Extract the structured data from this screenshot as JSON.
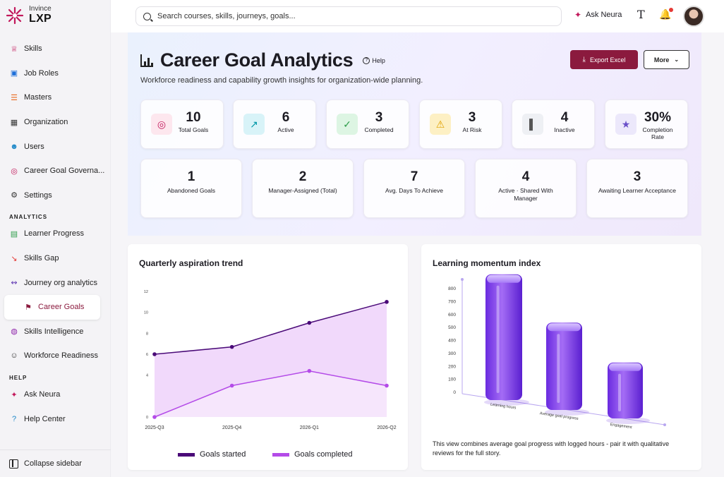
{
  "logo": {
    "small": "Invince",
    "big": "LXP"
  },
  "sidebar": {
    "items": [
      {
        "label": "Skills",
        "icon": "crown-icon",
        "color": "#c2185b"
      },
      {
        "label": "Job Roles",
        "icon": "briefcase-icon",
        "color": "#1e6fd9"
      },
      {
        "label": "Masters",
        "icon": "layers-icon",
        "color": "#e86a1f"
      },
      {
        "label": "Organization",
        "icon": "building-icon",
        "color": "#333333"
      },
      {
        "label": "Users",
        "icon": "users-icon",
        "color": "#1e88c8"
      },
      {
        "label": "Career Goal Governa...",
        "icon": "target-icon",
        "color": "#c2185b"
      },
      {
        "label": "Settings",
        "icon": "gear-icon",
        "color": "#333333"
      }
    ],
    "analytics_heading": "ANALYTICS",
    "analytics": [
      {
        "label": "Learner Progress",
        "icon": "document-icon",
        "color": "#2e9d4a"
      },
      {
        "label": "Skills Gap",
        "icon": "trend-down-icon",
        "color": "#e53935"
      },
      {
        "label": "Journey org analytics",
        "icon": "branch-icon",
        "color": "#5e35b1"
      },
      {
        "label": "Career Goals",
        "icon": "flag-icon",
        "color": "#8b1a3e",
        "active": true
      },
      {
        "label": "Skills Intelligence",
        "icon": "globe-icon",
        "color": "#8e24aa"
      },
      {
        "label": "Workforce Readiness",
        "icon": "people-icon",
        "color": "#333333"
      }
    ],
    "help_heading": "HELP",
    "help": [
      {
        "label": "Ask Neura",
        "icon": "neura-icon",
        "color": "#c2185b"
      },
      {
        "label": "Help Center",
        "icon": "question-icon",
        "color": "#1e88c8"
      }
    ],
    "collapse_label": "Collapse sidebar"
  },
  "topbar": {
    "search_placeholder": "Search courses, skills, journeys, goals...",
    "ask_label": "Ask Neura"
  },
  "hero": {
    "title": "Career Goal Analytics",
    "help_label": "Help",
    "subtitle": "Workforce readiness and capability growth insights for organization-wide planning.",
    "export_label": "Export Excel",
    "more_label": "More"
  },
  "stats_row1": [
    {
      "value": "10",
      "label": "Total Goals",
      "icon": "target-icon",
      "bg": "#fde7ee",
      "fg": "#c2185b"
    },
    {
      "value": "6",
      "label": "Active",
      "icon": "trend-up-icon",
      "bg": "#d8f3f8",
      "fg": "#0097a7"
    },
    {
      "value": "3",
      "label": "Completed",
      "icon": "check-circle-icon",
      "bg": "#ddf5e3",
      "fg": "#2e9d4a"
    },
    {
      "value": "3",
      "label": "At Risk",
      "icon": "warning-icon",
      "bg": "#fdf0c4",
      "fg": "#e0a100"
    },
    {
      "value": "4",
      "label": "Inactive",
      "icon": "bar-chart-icon",
      "bg": "#eef0f4",
      "fg": "#555555"
    },
    {
      "value": "30%",
      "label": "Completion Rate",
      "icon": "award-icon",
      "bg": "#ece8fb",
      "fg": "#6a4fc9"
    }
  ],
  "stats_row2": [
    {
      "value": "1",
      "label": "Abandoned Goals"
    },
    {
      "value": "2",
      "label": "Manager-Assigned (Total)"
    },
    {
      "value": "7",
      "label": "Avg. Days To Achieve"
    },
    {
      "value": "4",
      "label": "Active · Shared With Manager"
    },
    {
      "value": "3",
      "label": "Awaiting Learner Acceptance"
    }
  ],
  "chart_data": [
    {
      "type": "area",
      "title": "Quarterly aspiration trend",
      "x": [
        "2025-Q3",
        "2025-Q4",
        "2026-Q1",
        "2026-Q2"
      ],
      "ylim": [
        0,
        12
      ],
      "yticks": [
        0,
        4,
        6,
        8,
        10,
        12
      ],
      "series": [
        {
          "name": "Goals started",
          "values": [
            6,
            6.7,
            9,
            11
          ],
          "color": "#4a0a78"
        },
        {
          "name": "Goals completed",
          "values": [
            0,
            3,
            4.4,
            3
          ],
          "color": "#b44be8"
        }
      ]
    },
    {
      "type": "bar",
      "title": "Learning momentum index",
      "categories": [
        "Learning hours",
        "Average goal progress",
        "Engagement"
      ],
      "values": [
        720,
        500,
        320
      ],
      "ylim": [
        0,
        800
      ],
      "yticks": [
        0,
        100,
        200,
        300,
        400,
        500,
        600,
        700,
        800
      ],
      "note": "This view combines average goal progress with logged hours - pair it with qualitative reviews for the full story."
    }
  ]
}
